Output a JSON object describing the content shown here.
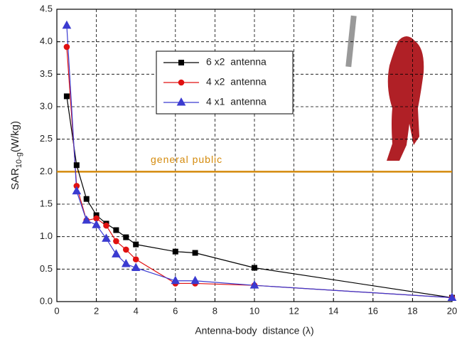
{
  "chart_data": {
    "type": "line",
    "xlabel": "Antenna-body  distance (λ)",
    "ylabel_parts": [
      "SAR",
      "10-g",
      "(W/kg)"
    ],
    "x": [
      0.5,
      1,
      1.5,
      2,
      2.5,
      3,
      3.5,
      4,
      6,
      7,
      10,
      20
    ],
    "series": [
      {
        "name": "6 x2  antenna",
        "color": "#000000",
        "marker": "square",
        "values": [
          3.16,
          2.1,
          1.58,
          1.33,
          1.2,
          1.1,
          0.99,
          0.88,
          0.77,
          0.75,
          0.52,
          0.06
        ]
      },
      {
        "name": "4 x2  antenna",
        "color": "#e01010",
        "marker": "circle",
        "values": [
          3.92,
          1.78,
          1.25,
          1.28,
          1.17,
          0.93,
          0.8,
          0.65,
          0.28,
          0.28,
          0.25,
          0.06
        ]
      },
      {
        "name": "4 x1  antenna",
        "color": "#3b3bd0",
        "marker": "triangle",
        "values": [
          4.25,
          1.7,
          1.25,
          1.18,
          0.97,
          0.73,
          0.58,
          0.52,
          0.32,
          0.32,
          0.25,
          0.06
        ]
      }
    ],
    "xlim": [
      0,
      20
    ],
    "xticks": [
      0,
      2,
      4,
      6,
      8,
      10,
      12,
      14,
      16,
      18,
      20
    ],
    "ylim": [
      0,
      4.5
    ],
    "yticks": [
      {
        "value": 0,
        "label": "0.0"
      },
      0.5,
      {
        "value": 1,
        "label": "1.0"
      },
      1.5,
      {
        "value": 2,
        "label": "2.0"
      },
      2.5,
      {
        "value": 3,
        "label": "3.0"
      },
      3.5,
      {
        "value": 4,
        "label": "4.0"
      },
      4.5
    ],
    "grid": true,
    "hline": {
      "value": 2,
      "label": "general public",
      "color": "#d48a0c"
    }
  }
}
